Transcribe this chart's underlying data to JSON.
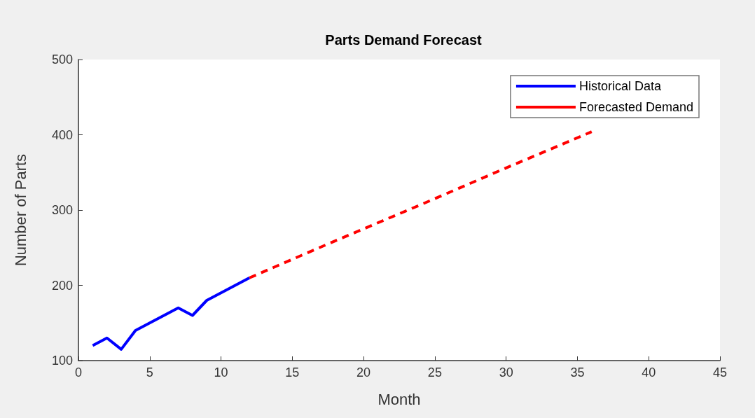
{
  "chart_data": {
    "type": "line",
    "title": "Parts Demand Forecast",
    "xlabel": "Month",
    "ylabel": "Number of Parts",
    "series": [
      {
        "name": "Historical Data",
        "color": "#0000ff",
        "line_style": "solid",
        "x": [
          1,
          2,
          3,
          4,
          5,
          6,
          7,
          8,
          9,
          10,
          11,
          12
        ],
        "values": [
          120,
          130,
          115,
          140,
          150,
          160,
          170,
          160,
          180,
          190,
          200,
          210
        ]
      },
      {
        "name": "Forecasted Demand",
        "color": "#ff0000",
        "line_style": "dashed",
        "x": [
          12,
          18,
          24,
          30,
          36
        ],
        "values": [
          210,
          259,
          307,
          356,
          404
        ]
      }
    ],
    "xlim": [
      0,
      45
    ],
    "xticks": [
      0,
      5,
      10,
      15,
      20,
      25,
      30,
      35,
      40,
      45
    ],
    "ylim": [
      100,
      500
    ],
    "yticks": [
      100,
      200,
      300,
      400,
      500
    ],
    "grid": false,
    "legend": "top right",
    "marker": "none"
  }
}
